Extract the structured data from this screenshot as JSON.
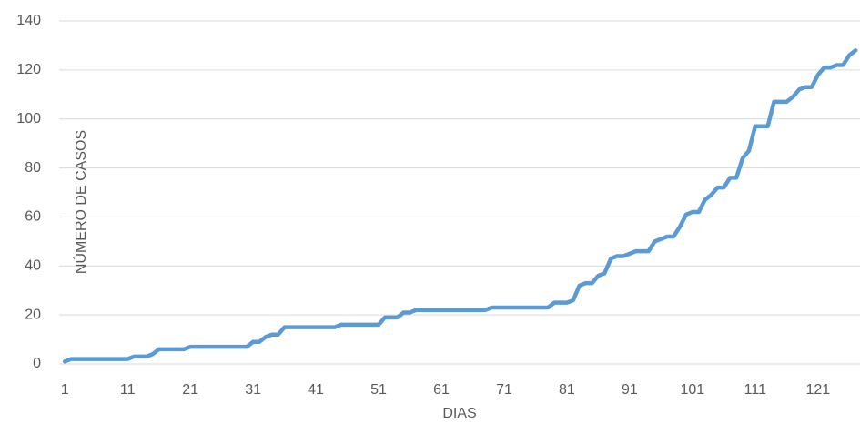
{
  "chart_data": {
    "type": "line",
    "x_label": "DIAS",
    "y_label": "NÚMERO DE CASOS",
    "x": [
      1,
      2,
      3,
      4,
      5,
      6,
      7,
      8,
      9,
      10,
      11,
      12,
      13,
      14,
      15,
      16,
      17,
      18,
      19,
      20,
      21,
      22,
      23,
      24,
      25,
      26,
      27,
      28,
      29,
      30,
      31,
      32,
      33,
      34,
      35,
      36,
      37,
      38,
      39,
      40,
      41,
      42,
      43,
      44,
      45,
      46,
      47,
      48,
      49,
      50,
      51,
      52,
      53,
      54,
      55,
      56,
      57,
      58,
      59,
      60,
      61,
      62,
      63,
      64,
      65,
      66,
      67,
      68,
      69,
      70,
      71,
      72,
      73,
      74,
      75,
      76,
      77,
      78,
      79,
      80,
      81,
      82,
      83,
      84,
      85,
      86,
      87,
      88,
      89,
      90,
      91,
      92,
      93,
      94,
      95,
      96,
      97,
      98,
      99,
      100,
      101,
      102,
      103,
      104,
      105,
      106,
      107,
      108,
      109,
      110,
      111,
      112,
      113,
      114,
      115,
      116,
      117,
      118,
      119,
      120,
      121,
      122,
      123,
      124,
      125,
      126,
      127
    ],
    "values": [
      1,
      2,
      2,
      2,
      2,
      2,
      2,
      2,
      2,
      2,
      2,
      3,
      3,
      3,
      4,
      6,
      6,
      6,
      6,
      6,
      7,
      7,
      7,
      7,
      7,
      7,
      7,
      7,
      7,
      7,
      9,
      9,
      11,
      12,
      12,
      15,
      15,
      15,
      15,
      15,
      15,
      15,
      15,
      15,
      16,
      16,
      16,
      16,
      16,
      16,
      16,
      19,
      19,
      19,
      21,
      21,
      22,
      22,
      22,
      22,
      22,
      22,
      22,
      22,
      22,
      22,
      22,
      22,
      23,
      23,
      23,
      23,
      23,
      23,
      23,
      23,
      23,
      23,
      25,
      25,
      25,
      26,
      32,
      33,
      33,
      36,
      37,
      43,
      44,
      44,
      45,
      46,
      46,
      46,
      50,
      51,
      52,
      52,
      56,
      61,
      62,
      62,
      67,
      69,
      72,
      72,
      76,
      76,
      84,
      87,
      97,
      97,
      97,
      107,
      107,
      107,
      109,
      112,
      113,
      113,
      118,
      121,
      121,
      122,
      122,
      126,
      128
    ],
    "color": "#5b9bd5",
    "xlim": [
      0.1,
      127.7
    ],
    "xticks": [
      1,
      11,
      21,
      31,
      41,
      51,
      61,
      71,
      81,
      91,
      101,
      111,
      121
    ],
    "ylim": [
      0,
      140
    ],
    "yticks": [
      0,
      20,
      40,
      60,
      80,
      100,
      120,
      140
    ],
    "grid": true
  }
}
